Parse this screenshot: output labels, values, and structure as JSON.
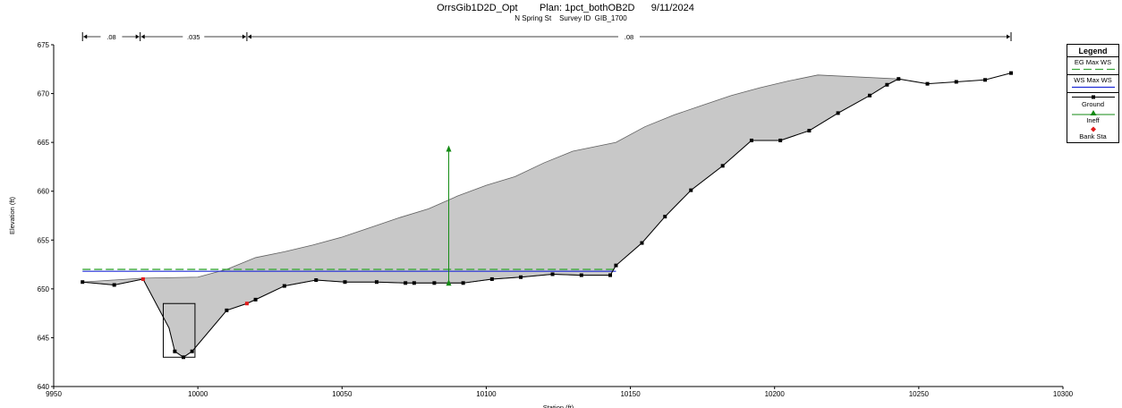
{
  "header": {
    "title": "OrrsGib1D2D_Opt        Plan: 1pct_bothOB2D      9/11/2024",
    "subtitle": "N Spring St    Survey ID  GIB_1700"
  },
  "legend": {
    "title": "Legend",
    "items": [
      {
        "label": "EG Max WS",
        "color": "#3aa73a",
        "style": "dashed"
      },
      {
        "label": "WS Max WS",
        "color": "#1f2bd6",
        "style": "solid"
      },
      {
        "label": "Ground",
        "color": "#000000",
        "style": "line-square"
      },
      {
        "label": "Ineff",
        "color": "#138a13",
        "style": "triangle"
      },
      {
        "label": "Bank Sta",
        "color": "#e11b1b",
        "style": "diamond"
      }
    ]
  },
  "chart_data": {
    "type": "line",
    "title": "",
    "xlabel": "Station (ft)",
    "ylabel": "Elevation (ft)",
    "xlim": [
      9950,
      10300
    ],
    "ylim": [
      640,
      675
    ],
    "x_ticks": [
      9950,
      10000,
      10050,
      10100,
      10150,
      10200,
      10250,
      10300
    ],
    "y_ticks": [
      640,
      645,
      650,
      655,
      660,
      665,
      670,
      675
    ],
    "x_tick_labels": [
      "9950",
      "10000",
      "10050",
      "10100",
      "10150",
      "10200",
      "10250",
      "10300"
    ],
    "y_tick_labels": [
      "640",
      "645",
      "650",
      "655",
      "660",
      "665",
      "670",
      "675"
    ],
    "ground": {
      "name": "Ground",
      "color": "#000000",
      "x": [
        9960,
        9971,
        9981,
        9990,
        9992,
        9995,
        9998,
        10010,
        10017,
        10020,
        10030,
        10041,
        10051,
        10062,
        10072,
        10075,
        10082,
        10087,
        10092,
        10102,
        10112,
        10123,
        10133,
        10143,
        10145,
        10154,
        10162,
        10171,
        10182,
        10192,
        10202,
        10212,
        10222,
        10233,
        10239,
        10243,
        10253,
        10263,
        10273,
        10282
      ],
      "y": [
        650.7,
        650.4,
        651.0,
        646.0,
        643.6,
        643.0,
        643.6,
        647.8,
        648.5,
        648.9,
        650.3,
        650.9,
        650.7,
        650.7,
        650.6,
        650.6,
        650.6,
        650.6,
        650.6,
        651.0,
        651.2,
        651.5,
        651.4,
        651.4,
        652.4,
        654.7,
        657.4,
        660.1,
        662.6,
        665.2,
        665.2,
        666.2,
        668.0,
        669.8,
        670.9,
        671.5,
        671.0,
        671.2,
        671.4,
        672.1
      ],
      "marker_x": [
        9960,
        9971,
        9992,
        9995,
        9998,
        10010,
        10020,
        10030,
        10041,
        10051,
        10062,
        10072,
        10075,
        10082,
        10092,
        10102,
        10112,
        10123,
        10133,
        10143,
        10145,
        10154,
        10162,
        10171,
        10182,
        10192,
        10202,
        10212,
        10222,
        10233,
        10239,
        10243,
        10253,
        10263,
        10273,
        10282
      ]
    },
    "bank_stations": {
      "name": "Bank Sta",
      "color": "#e11b1b",
      "x": [
        9981,
        10017
      ],
      "y": [
        651.0,
        648.5
      ]
    },
    "ws_max": {
      "name": "WS Max WS",
      "color": "#1f2bd6",
      "x": [
        9960,
        10145
      ],
      "y": 651.8
    },
    "eg_max": {
      "name": "EG Max WS",
      "color": "#3aa73a",
      "x": [
        9960,
        10145
      ],
      "y": 652.0
    },
    "ineffective": {
      "name": "Ineff",
      "color": "#138a13",
      "x": 10087,
      "y_bottom": 650.6,
      "y_top": 664.6
    },
    "shaded_area": {
      "color": "#c8c8c8",
      "top_x": [
        9960,
        9981,
        10000,
        10010,
        10020,
        10030,
        10040,
        10050,
        10060,
        10070,
        10080,
        10090,
        10100,
        10110,
        10120,
        10130,
        10145,
        10155,
        10165,
        10175,
        10185,
        10195,
        10205,
        10215,
        10243
      ],
      "top_y": [
        650.7,
        651.1,
        651.2,
        652.0,
        653.2,
        653.8,
        654.5,
        655.3,
        656.3,
        657.3,
        658.2,
        659.5,
        660.6,
        661.5,
        662.9,
        664.1,
        665.0,
        666.6,
        667.8,
        668.8,
        669.8,
        670.6,
        671.3,
        671.9,
        671.5
      ]
    },
    "culvert_box": {
      "x": [
        9988,
        9999
      ],
      "y": [
        643.0,
        648.5
      ]
    },
    "mannings_n": [
      {
        "label": ".08",
        "x_start": 9960,
        "x_end": 9980
      },
      {
        "label": ".035",
        "x_start": 9980,
        "x_end": 10017
      },
      {
        "label": ".08",
        "x_start": 10017,
        "x_end": 10282
      }
    ]
  }
}
